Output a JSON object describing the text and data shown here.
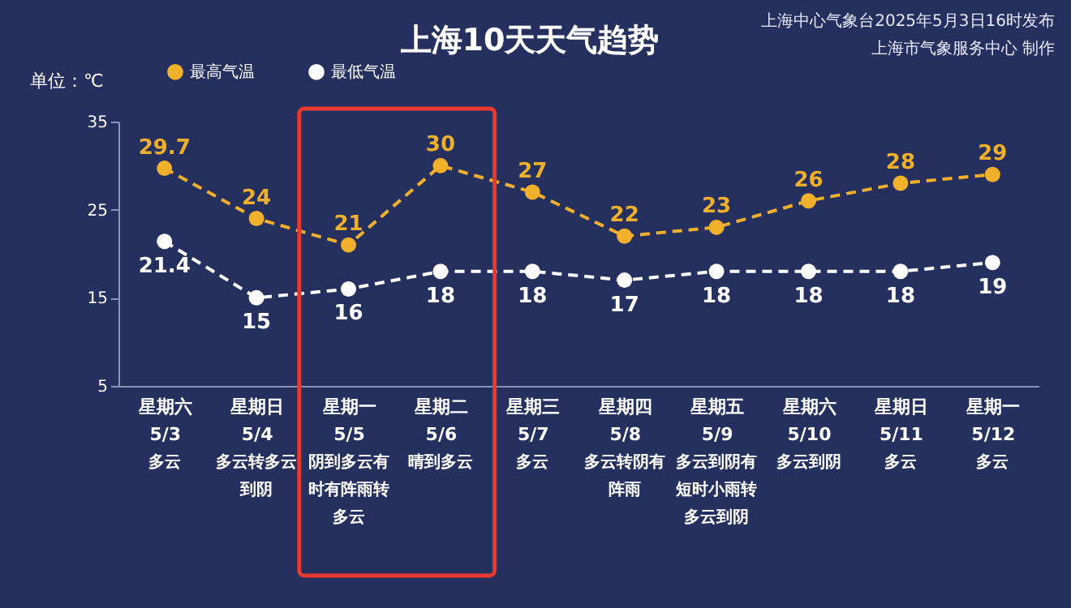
{
  "chart_data": {
    "type": "line",
    "title": "上海10天天气趋势",
    "ylabel": "单位：℃",
    "categories": [
      "星期六 5/3",
      "星期日 5/4",
      "星期一 5/5",
      "星期二 5/6",
      "星期三 5/7",
      "星期四 5/8",
      "星期五 5/9",
      "星期六 5/10",
      "星期日 5/11",
      "星期一 5/12"
    ],
    "series": [
      {
        "name": "最高气温",
        "color": "#f0b02c",
        "values": [
          29.7,
          24,
          21,
          30,
          27,
          22,
          23,
          26,
          28,
          29
        ]
      },
      {
        "name": "最低气温",
        "color": "#ffffff",
        "values": [
          21.4,
          15,
          16,
          18,
          18,
          17,
          18,
          18,
          18,
          19
        ]
      }
    ],
    "ylim": [
      5,
      35
    ],
    "yticks": [
      5,
      15,
      25,
      35
    ],
    "grid": false,
    "legend": "top",
    "marker": "circle",
    "line_style": "dashed",
    "data_labels": true,
    "annotations": [
      "上海中心气象台2025年5月3日16时发布",
      "上海市气象服务中心 制作",
      "多云",
      "多云转多云到阴",
      "阴到多云有时有阵雨转多云",
      "晴到多云",
      "多云",
      "多云转阴有阵雨",
      "多云到阴有短时小雨转多云到阴",
      "多云到阴",
      "多云",
      "多云"
    ]
  }
}
